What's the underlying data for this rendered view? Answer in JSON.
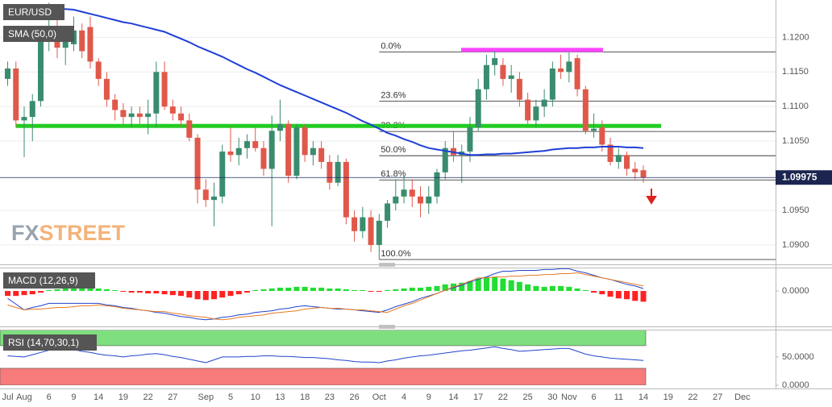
{
  "chart_data": [
    {
      "type": "candlestick",
      "title": "EUR/USD",
      "categories": [
        "Jul",
        null,
        "Aug",
        null,
        null,
        "6",
        null,
        null,
        "9",
        null,
        null,
        "14",
        null,
        null,
        "19",
        null,
        null,
        "22",
        null,
        null,
        "27",
        null,
        null,
        null,
        "Sep",
        null,
        null,
        "5",
        null,
        null,
        "10",
        null,
        null,
        "13",
        null,
        null,
        "18",
        null,
        null,
        "23",
        null,
        null,
        "26",
        null,
        null,
        "Oct",
        null,
        null,
        "4",
        null,
        null,
        "9",
        null,
        null,
        "14",
        null,
        null,
        "17",
        null,
        null,
        "22",
        null,
        null,
        "25",
        null,
        null,
        "30",
        null,
        "Nov",
        null,
        null,
        "6",
        null,
        null,
        "11",
        null,
        null,
        "14",
        null,
        null,
        "19",
        null,
        null,
        "22",
        null,
        null,
        "27",
        null,
        null,
        "Dec"
      ],
      "open": [
        1.114,
        1.1155,
        1.108,
        1.1085,
        1.1108,
        1.1195,
        1.1205,
        1.1185,
        1.119,
        1.121,
        1.1215,
        1.1165,
        1.114,
        1.111,
        1.1095,
        1.1085,
        1.109,
        1.1085,
        1.109,
        1.115,
        1.11,
        1.109,
        1.108,
        1.1055,
        1.098,
        1.0965,
        1.097,
        1.1035,
        1.103,
        1.104,
        1.105,
        1.104,
        1.101,
        1.1065,
        1.1075,
        1.1,
        1.107,
        1.103,
        1.104,
        1.102,
        1.099,
        1.102,
        1.094,
        1.092,
        1.094,
        1.09,
        1.0935,
        1.096,
        1.097,
        1.098,
        1.097,
        1.096,
        1.097,
        1.1005,
        1.104,
        1.103,
        1.1035,
        1.107,
        1.1125,
        1.116,
        1.116,
        1.114,
        1.114,
        1.111,
        1.108,
        1.11,
        1.111,
        1.1155,
        1.115,
        1.117,
        1.1125,
        1.1065,
        1.107,
        1.1045,
        1.102,
        1.103,
        1.101,
        1.1008,
        null,
        null,
        null,
        null,
        null,
        null,
        null,
        null,
        null,
        null,
        null,
        null
      ],
      "high": [
        1.1165,
        1.1165,
        1.11,
        1.1118,
        1.1215,
        1.125,
        1.123,
        1.1215,
        1.123,
        1.122,
        1.123,
        1.117,
        1.115,
        1.1118,
        1.1105,
        1.11,
        1.11,
        1.111,
        1.1165,
        1.1165,
        1.111,
        1.11,
        1.109,
        1.106,
        1.0995,
        1.099,
        1.1045,
        1.107,
        1.1055,
        1.106,
        1.107,
        1.105,
        1.1087,
        1.111,
        1.108,
        1.1075,
        1.1075,
        1.105,
        1.105,
        1.103,
        1.103,
        1.1025,
        1.095,
        1.0955,
        1.095,
        1.0945,
        1.0965,
        1.0995,
        1.1,
        1.0995,
        1.0985,
        1.0985,
        1.101,
        1.105,
        1.1065,
        1.1045,
        1.1085,
        1.114,
        1.1175,
        1.118,
        1.117,
        1.116,
        1.115,
        1.112,
        1.111,
        1.1125,
        1.1165,
        1.1175,
        1.1178,
        1.1175,
        1.113,
        1.109,
        1.108,
        1.1055,
        1.104,
        1.1035,
        1.102,
        1.1015,
        null,
        null,
        null,
        null,
        null,
        null,
        null,
        null,
        null,
        null,
        null,
        null
      ],
      "low": [
        1.113,
        1.107,
        1.1027,
        1.105,
        1.11,
        1.118,
        1.117,
        1.116,
        1.118,
        1.117,
        1.1155,
        1.113,
        1.11,
        1.108,
        1.1075,
        1.107,
        1.1075,
        1.106,
        1.107,
        1.1095,
        1.108,
        1.107,
        1.105,
        1.096,
        1.0955,
        1.0927,
        1.096,
        1.102,
        1.1015,
        1.1025,
        1.1035,
        1.1,
        1.0927,
        1.105,
        1.099,
        1.0995,
        1.102,
        1.1015,
        1.101,
        1.098,
        1.0985,
        1.093,
        1.0905,
        1.091,
        1.089,
        1.0879,
        1.0925,
        1.095,
        1.096,
        1.0955,
        1.094,
        1.0945,
        1.096,
        1.0995,
        1.102,
        1.099,
        1.102,
        1.1065,
        1.111,
        1.1145,
        1.113,
        1.112,
        1.11,
        1.1075,
        1.107,
        1.1085,
        1.11,
        1.114,
        1.1135,
        1.1115,
        1.106,
        1.1055,
        1.1035,
        1.1015,
        1.101,
        1.1,
        1.0995,
        1.099,
        null,
        null,
        null,
        null,
        null,
        null,
        null,
        null,
        null,
        null,
        null,
        null
      ],
      "close": [
        1.1155,
        1.108,
        1.1085,
        1.1108,
        1.12,
        1.1205,
        1.1185,
        1.1195,
        1.121,
        1.118,
        1.1165,
        1.114,
        1.111,
        1.1095,
        1.1085,
        1.109,
        1.1085,
        1.109,
        1.115,
        1.11,
        1.109,
        1.108,
        1.1055,
        1.098,
        1.0965,
        1.097,
        1.1035,
        1.103,
        1.104,
        1.105,
        1.104,
        1.101,
        1.1065,
        1.1075,
        1.1,
        1.107,
        1.103,
        1.104,
        1.102,
        1.099,
        1.102,
        1.094,
        1.092,
        1.094,
        1.09,
        1.0935,
        1.096,
        1.097,
        1.098,
        1.097,
        1.096,
        1.097,
        1.1005,
        1.104,
        1.103,
        1.1035,
        1.107,
        1.1125,
        1.116,
        1.117,
        1.114,
        1.1145,
        1.111,
        1.108,
        1.11,
        1.111,
        1.1155,
        1.115,
        1.1165,
        1.1125,
        1.1065,
        1.1068,
        1.1045,
        1.102,
        1.103,
        1.101,
        1.1005,
        1.09975,
        null,
        null,
        null,
        null,
        null,
        null,
        null,
        null,
        null,
        null,
        null,
        null
      ],
      "up_color": "#3a8c6e",
      "down_color": "#e0584a",
      "series": [
        {
          "name": "SMA (50,0)",
          "color": "#1f3fd6",
          "values": [
            1.1243,
            1.1243,
            1.1243,
            1.1242,
            1.1242,
            1.1242,
            1.1241,
            1.1241,
            1.124,
            1.1237,
            1.1234,
            1.1231,
            1.1228,
            1.1225,
            1.1222,
            1.122,
            1.1217,
            1.1214,
            1.1211,
            1.1208,
            1.1203,
            1.1198,
            1.1193,
            1.1187,
            1.1182,
            1.1177,
            1.1172,
            1.1166,
            1.116,
            1.1154,
            1.1149,
            1.1143,
            1.1137,
            1.1131,
            1.1126,
            1.1121,
            1.1116,
            1.1111,
            1.1106,
            1.1101,
            1.1096,
            1.1091,
            1.1085,
            1.1079,
            1.1074,
            1.1068,
            1.1062,
            1.1058,
            1.1053,
            1.1049,
            1.1044,
            1.104,
            1.1038,
            1.1036,
            1.1034,
            1.1032,
            1.103,
            1.103,
            1.1031,
            1.1031,
            1.1032,
            1.1032,
            1.1033,
            1.1034,
            1.1035,
            1.1036,
            1.1038,
            1.1039,
            1.104,
            1.104,
            1.1041,
            1.1041,
            1.1042,
            1.1042,
            1.1042,
            1.1041,
            1.1041,
            1.104,
            null,
            null,
            null,
            null,
            null,
            null,
            null,
            null,
            null,
            null,
            null,
            null
          ]
        }
      ],
      "ylim": [
        1.0872,
        1.1254
      ],
      "yticks": [
        {
          "value": 1.12,
          "label": "1.1200"
        },
        {
          "value": 1.115,
          "label": "1.1150"
        },
        {
          "value": 1.11,
          "label": "1.1100"
        },
        {
          "value": 1.105,
          "label": "1.1050"
        },
        {
          "value": 1.095,
          "label": "1.0950"
        },
        {
          "value": 1.09,
          "label": "1.0900"
        }
      ],
      "grid": true,
      "hlines": [
        {
          "value": 1.1072,
          "color": "#22cc22"
        },
        {
          "value": 1.1182,
          "color": "#ff44ff"
        }
      ],
      "fib_levels": [
        {
          "label": "0.0%",
          "value": 1.1179
        },
        {
          "label": "23.6%",
          "value": 1.1108
        },
        {
          "label": "38.2%",
          "value": 1.1064
        },
        {
          "label": "50.0%",
          "value": 1.1029
        },
        {
          "label": "61.8%",
          "value": 1.0994
        },
        {
          "label": "100.0%",
          "value": 1.0879
        }
      ],
      "watermark": [
        "FX",
        "STREET"
      ]
    },
    {
      "type": "macd",
      "name": "MACD (12,26,9)",
      "histogram": [
        -0.0006,
        -0.0006,
        -0.0005,
        -0.0004,
        -0.0002,
        0.0001,
        0.0002,
        0.0003,
        0.0004,
        0.0004,
        0.0004,
        0.0003,
        0.0002,
        0.0001,
        -0.0001,
        -0.0002,
        -0.0002,
        -0.0003,
        -0.0003,
        -0.0004,
        -0.0005,
        -0.0006,
        -0.0008,
        -0.001,
        -0.0011,
        -0.001,
        -0.0008,
        -0.0006,
        -0.0004,
        -0.0002,
        0.0001,
        0.0002,
        0.0003,
        0.0004,
        0.0004,
        0.0005,
        0.0005,
        0.0004,
        0.0004,
        0.0003,
        0.0003,
        0.0002,
        0.0001,
        0.0001,
        -0.0001,
        -0.0001,
        0.0001,
        0.0002,
        0.0003,
        0.0004,
        0.0004,
        0.0005,
        0.0006,
        0.0008,
        0.0009,
        0.001,
        0.0012,
        0.0015,
        0.0017,
        0.0017,
        0.0015,
        0.0013,
        0.0011,
        0.0008,
        0.0006,
        0.0005,
        0.0006,
        0.0006,
        0.0005,
        0.0003,
        0.0001,
        -0.0002,
        -0.0004,
        -0.0007,
        -0.0009,
        -0.001,
        -0.0012,
        -0.0013,
        null,
        null,
        null,
        null,
        null,
        null,
        null,
        null,
        null,
        null,
        null,
        null
      ],
      "pos_color": "#22dd33",
      "neg_color": "#ff2222",
      "series": [
        {
          "color": "#2244cc",
          "values": [
            -0.0009,
            -0.0016,
            -0.0023,
            -0.002,
            -0.0018,
            -0.0015,
            -0.0015,
            -0.0015,
            -0.0015,
            -0.0015,
            -0.0015,
            -0.0015,
            -0.0017,
            -0.0018,
            -0.002,
            -0.0021,
            -0.0023,
            -0.0024,
            -0.0026,
            -0.0027,
            -0.0029,
            -0.0031,
            -0.0032,
            -0.0034,
            -0.0035,
            -0.0034,
            -0.0032,
            -0.0031,
            -0.0029,
            -0.0028,
            -0.0026,
            -0.0025,
            -0.0024,
            -0.0022,
            -0.0021,
            -0.0019,
            -0.0018,
            -0.0019,
            -0.002,
            -0.0021,
            -0.0022,
            -0.0022,
            -0.0023,
            -0.0024,
            -0.0025,
            -0.0026,
            -0.0023,
            -0.0019,
            -0.0016,
            -0.0013,
            -0.0009,
            -0.0006,
            -0.0003,
            0.0001,
            0.0004,
            0.0007,
            0.0011,
            0.0014,
            0.0017,
            0.0021,
            0.0024,
            0.0024,
            0.0025,
            0.0025,
            0.0025,
            0.0026,
            0.0026,
            0.0027,
            0.0027,
            0.0024,
            0.0022,
            0.0019,
            0.0016,
            0.0014,
            0.0011,
            0.0008,
            0.0006,
            0.0003,
            null,
            null,
            null,
            null,
            null,
            null,
            null,
            null,
            null,
            null,
            null,
            null
          ]
        },
        {
          "color": "#e87a20",
          "values": [
            -0.0017,
            -0.002,
            -0.0023,
            -0.0022,
            -0.0022,
            -0.0021,
            -0.002,
            -0.002,
            -0.0019,
            -0.0018,
            -0.0018,
            -0.0017,
            -0.0018,
            -0.0019,
            -0.0021,
            -0.0022,
            -0.0023,
            -0.0024,
            -0.0025,
            -0.0025,
            -0.0027,
            -0.0028,
            -0.003,
            -0.0031,
            -0.0032,
            -0.0034,
            -0.0035,
            -0.0034,
            -0.0032,
            -0.0031,
            -0.003,
            -0.0029,
            -0.0027,
            -0.0026,
            -0.0025,
            -0.0024,
            -0.0022,
            -0.0021,
            -0.002,
            -0.0021,
            -0.0021,
            -0.0022,
            -0.0023,
            -0.0023,
            -0.0024,
            -0.0025,
            -0.0026,
            -0.0022,
            -0.0018,
            -0.0015,
            -0.0011,
            -0.0007,
            -0.0003,
            0.0001,
            0.0005,
            0.0008,
            0.0012,
            0.0016,
            0.0016,
            0.0017,
            0.0017,
            0.0018,
            0.0018,
            0.0019,
            0.0019,
            0.002,
            0.002,
            0.0021,
            0.0021,
            0.0022,
            0.002,
            0.0018,
            0.0016,
            0.0014,
            0.0012,
            0.001,
            0.0008,
            0.0006,
            null,
            null,
            null,
            null,
            null,
            null,
            null,
            null,
            null,
            null,
            null,
            null
          ]
        }
      ],
      "ylim": [
        -0.0043,
        0.00274
      ],
      "yticks": [
        {
          "value": 0,
          "label": "0.0000"
        }
      ]
    },
    {
      "type": "rsi",
      "name": "RSI (14,70,30,1)",
      "series": [
        {
          "color": "#2244cc",
          "values": [
            52,
            51,
            50,
            54,
            58,
            62,
            62,
            63,
            63,
            60,
            58,
            55,
            53,
            52,
            50,
            52,
            53,
            55,
            56,
            54,
            51,
            49,
            46,
            43,
            40,
            45,
            50,
            50,
            50,
            51,
            51,
            52,
            52,
            51,
            51,
            50,
            49,
            49,
            48,
            47,
            45,
            44,
            42,
            41,
            41,
            40,
            43,
            45,
            48,
            50,
            52,
            53,
            55,
            57,
            59,
            61,
            62,
            64,
            66,
            68,
            65,
            63,
            60,
            61,
            62,
            63,
            64,
            65,
            65,
            60,
            55,
            52,
            50,
            48,
            47,
            46,
            45,
            44,
            null,
            null,
            null,
            null,
            null,
            null,
            null,
            null,
            null,
            null,
            null,
            null
          ]
        }
      ],
      "bands": [
        {
          "from": 70,
          "to": 100,
          "color": "#7ddf7e"
        },
        {
          "from": 0,
          "to": 30,
          "color": "#f77b7b"
        }
      ],
      "ylim": [
        0,
        97
      ],
      "yticks": [
        {
          "value": 50,
          "label": "50.0000"
        },
        {
          "value": 0,
          "label": "0.0000"
        }
      ]
    }
  ]
}
